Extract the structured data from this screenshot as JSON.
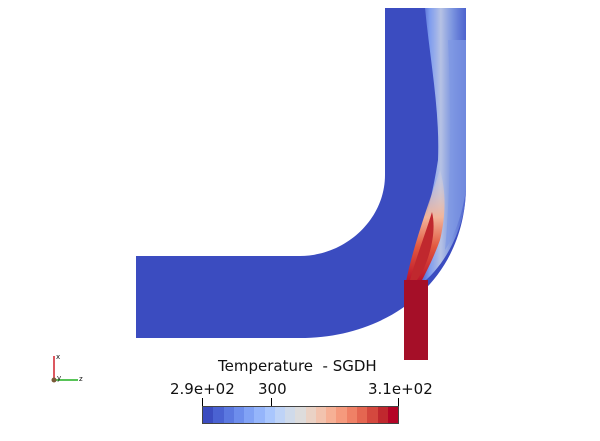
{
  "legend": {
    "title": "Temperature  - SGDH",
    "tick_min": "2.9e+02",
    "tick_mid": "300",
    "tick_max": "3.1e+02",
    "colormap": [
      "#3b4cc0",
      "#4a62d2",
      "#5b78e0",
      "#6d8dec",
      "#81a2f5",
      "#95b5fb",
      "#a9c6fd",
      "#bed3f7",
      "#cfdaea",
      "#dddcdc",
      "#ead2c5",
      "#f2c3ae",
      "#f6b095",
      "#f59a7d",
      "#ef8166",
      "#e46651",
      "#d4483e",
      "#c0282e",
      "#b40426"
    ]
  },
  "scene": {
    "cold_color": "#3b4cc0",
    "hot_color": "#a50f28"
  },
  "axes": {
    "x_label": "x",
    "y_label": "y",
    "z_label": "z"
  }
}
